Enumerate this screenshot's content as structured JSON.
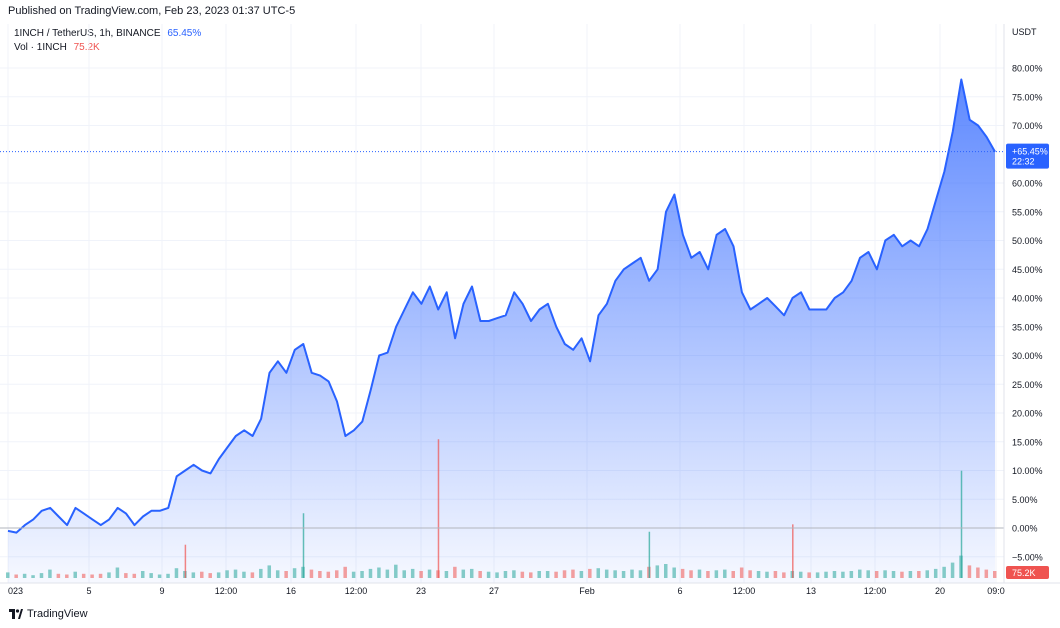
{
  "header": {
    "published": "Published on TradingView.com, Feb 23, 2023 01:37 UTC-5"
  },
  "legend": {
    "symbol": "1INCH / TetherUS, 1h, BINANCE",
    "change": "65.45%",
    "vol_label": "Vol · 1INCH",
    "vol_value": "75.2K"
  },
  "footer": {
    "brand": "TradingView"
  },
  "colors": {
    "line": "#2962ff",
    "area_top": "#2962ff",
    "vol_up": "#26a69a",
    "vol_down": "#ef5350",
    "grid": "#f0f3fa",
    "baseline": "#b2b5be",
    "badge_blue": "#2962ff",
    "badge_red": "#ef5350"
  },
  "chart_data": {
    "type": "area",
    "y_unit": "USDT",
    "y_scale": "percent",
    "y_range": [
      -7,
      83
    ],
    "y_ticks": [
      "80.00%",
      "75.00%",
      "70.00%",
      "60.00%",
      "55.00%",
      "50.00%",
      "45.00%",
      "40.00%",
      "35.00%",
      "30.00%",
      "25.00%",
      "20.00%",
      "15.00%",
      "10.00%",
      "5.00%",
      "0.00%",
      "−5.00%"
    ],
    "x_ticks": [
      "023",
      "5",
      "9",
      "12:00",
      "16",
      "12:00",
      "23",
      "27",
      "Feb",
      "6",
      "12:00",
      "13",
      "12:00",
      "20",
      "09:0"
    ],
    "current_label": "+65.45%",
    "countdown": "22:32",
    "volume_label": "75.2K",
    "grid": true,
    "series": [
      {
        "values": [
          -0.5,
          -0.8,
          0.5,
          1.5,
          3,
          3.5,
          2,
          0.5,
          3.5,
          2.5,
          1.5,
          0.5,
          1.5,
          3.5,
          2.5,
          0.5,
          2,
          3,
          3,
          3.5,
          9,
          10,
          11,
          10,
          9.5,
          12,
          14,
          16,
          17,
          16,
          19,
          27,
          29,
          27,
          31,
          32,
          27,
          26.5,
          25.5,
          22,
          16,
          17,
          18.5,
          24,
          30,
          30.5,
          35,
          38,
          41,
          39,
          42,
          38,
          41,
          33,
          39,
          42,
          36,
          36,
          36.5,
          37,
          41,
          39,
          36,
          38,
          39,
          35,
          32,
          31,
          33,
          29,
          37,
          39,
          43,
          45,
          46,
          47,
          43,
          45,
          55,
          58,
          51,
          47,
          48,
          45,
          51,
          52,
          49,
          41,
          38,
          39,
          40,
          38.5,
          37,
          40,
          41,
          38,
          38,
          38,
          40,
          41,
          43,
          47,
          48,
          45,
          50,
          51,
          49,
          50,
          49,
          52,
          57,
          62,
          69,
          78,
          71,
          70,
          68,
          65.45
        ]
      }
    ],
    "volume": [
      0.8,
      0.5,
      0.6,
      0.4,
      0.7,
      1.2,
      0.6,
      0.5,
      0.9,
      0.6,
      0.5,
      0.6,
      0.8,
      1.5,
      0.7,
      0.6,
      1.0,
      0.7,
      0.5,
      0.6,
      1.4,
      1.0,
      0.8,
      0.9,
      0.7,
      0.8,
      1.1,
      1.2,
      0.9,
      0.8,
      1.3,
      1.8,
      1.1,
      1.0,
      1.4,
      1.6,
      1.2,
      1.0,
      0.9,
      1.1,
      1.6,
      0.9,
      1.0,
      1.3,
      1.5,
      1.2,
      1.9,
      1.1,
      1.3,
      1.0,
      1.2,
      1.1,
      1.0,
      1.6,
      1.2,
      1.3,
      1.0,
      0.9,
      0.8,
      1.0,
      1.1,
      0.9,
      0.8,
      1.0,
      1.0,
      0.9,
      1.1,
      1.2,
      1.0,
      1.3,
      1.4,
      1.2,
      1.1,
      1.0,
      1.2,
      1.1,
      1.6,
      1.8,
      2.0,
      1.5,
      1.3,
      1.1,
      1.2,
      1.0,
      1.1,
      1.2,
      1.0,
      1.5,
      1.1,
      1.0,
      0.9,
      1.0,
      0.8,
      1.0,
      0.9,
      0.8,
      0.8,
      0.9,
      1.0,
      0.9,
      1.0,
      1.2,
      1.1,
      1.0,
      1.1,
      1.0,
      0.9,
      1.0,
      1.0,
      1.1,
      1.3,
      1.6,
      2.2,
      3.2,
      1.8,
      1.5,
      1.2,
      1.0
    ],
    "volume_spikes": [
      {
        "index": 51,
        "value": 7.5,
        "dir": "down"
      },
      {
        "index": 35,
        "value": 3.5,
        "dir": "up"
      },
      {
        "index": 21,
        "value": 1.8,
        "dir": "down"
      },
      {
        "index": 93,
        "value": 2.9,
        "dir": "down"
      },
      {
        "index": 76,
        "value": 2.5,
        "dir": "up"
      },
      {
        "index": 113,
        "value": 5.8,
        "dir": "up"
      }
    ]
  }
}
